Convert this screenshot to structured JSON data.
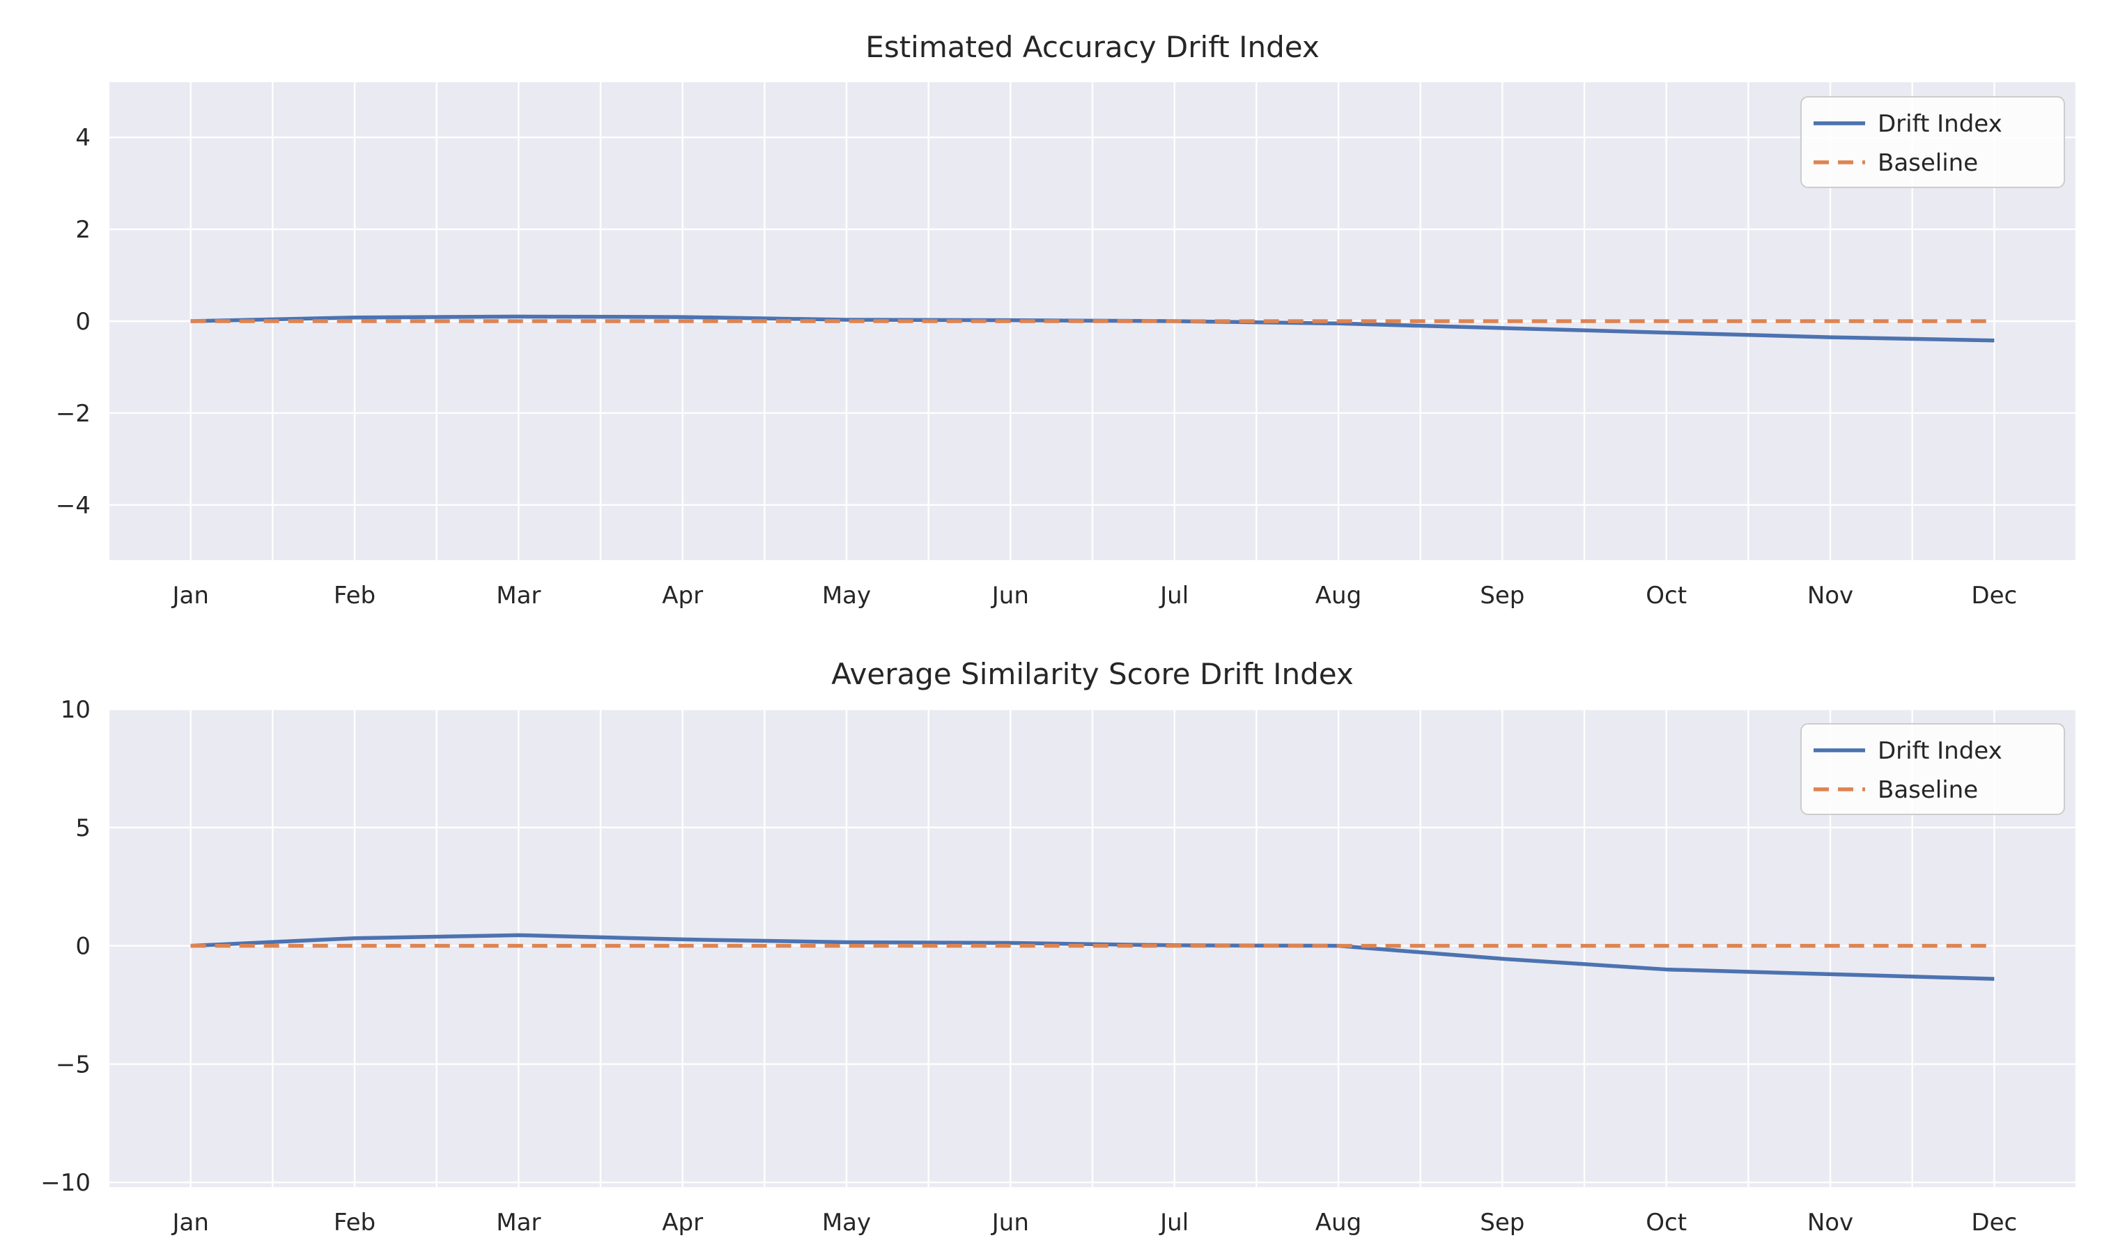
{
  "theme": {
    "figure_bg": "#ffffff",
    "plot_bg": "#eaeaf2",
    "grid_color": "#ffffff",
    "text_color": "#262626",
    "legend_bg": "#ffffff",
    "legend_border": "#cccccc",
    "drift_color": "#4c72b0",
    "baseline_color": "#dd8452"
  },
  "chart_data": [
    {
      "type": "line",
      "title": "Estimated Accuracy Drift Index",
      "categories": [
        "Jan",
        "Feb",
        "Mar",
        "Apr",
        "May",
        "Jun",
        "Jul",
        "Aug",
        "Sep",
        "Oct",
        "Nov",
        "Dec"
      ],
      "series": [
        {
          "name": "Drift Index",
          "color": "#4c72b0",
          "style": "solid",
          "values": [
            0.0,
            0.08,
            0.1,
            0.09,
            0.03,
            0.02,
            0.0,
            -0.05,
            -0.15,
            -0.25,
            -0.35,
            -0.42
          ]
        },
        {
          "name": "Baseline",
          "color": "#dd8452",
          "style": "dashed",
          "values": [
            0,
            0,
            0,
            0,
            0,
            0,
            0,
            0,
            0,
            0,
            0,
            0
          ]
        }
      ],
      "xlabel": "",
      "ylabel": "",
      "yticks": [
        4,
        2,
        0,
        -2,
        -4
      ],
      "ylim": [
        -5.2,
        5.2
      ],
      "xlim_pad": 0.5,
      "grid": true,
      "legend_position": "upper right",
      "legend_labels": [
        "Drift Index",
        "Baseline"
      ]
    },
    {
      "type": "line",
      "title": "Average Similarity Score Drift Index",
      "categories": [
        "Jan",
        "Feb",
        "Mar",
        "Apr",
        "May",
        "Jun",
        "Jul",
        "Aug",
        "Sep",
        "Oct",
        "Nov",
        "Dec"
      ],
      "series": [
        {
          "name": "Drift Index",
          "color": "#4c72b0",
          "style": "solid",
          "values": [
            0.0,
            0.32,
            0.45,
            0.27,
            0.15,
            0.12,
            0.02,
            0.0,
            -0.55,
            -1.0,
            -1.2,
            -1.4
          ]
        },
        {
          "name": "Baseline",
          "color": "#dd8452",
          "style": "dashed",
          "values": [
            0,
            0,
            0,
            0,
            0,
            0,
            0,
            0,
            0,
            0,
            0,
            0
          ]
        }
      ],
      "xlabel": "",
      "ylabel": "",
      "yticks": [
        10,
        5,
        0,
        -5,
        -10
      ],
      "ylim": [
        -10.2,
        10.0
      ],
      "xlim_pad": 0.5,
      "grid": true,
      "legend_position": "upper right",
      "legend_labels": [
        "Drift Index",
        "Baseline"
      ]
    }
  ]
}
